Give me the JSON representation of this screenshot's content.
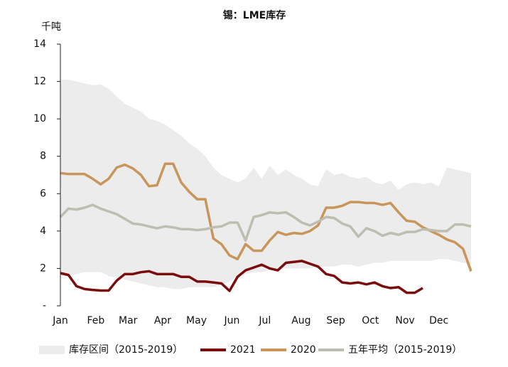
{
  "chart_data": {
    "type": "line",
    "title": "锡：LME库存",
    "y_label": "千吨",
    "x": [
      0,
      1,
      2,
      3,
      4,
      5,
      6,
      7,
      8,
      9,
      10,
      11,
      12,
      13,
      14,
      15,
      16,
      17,
      18,
      19,
      20,
      21,
      22,
      23,
      24,
      25,
      26,
      27,
      28,
      29,
      30,
      31,
      32,
      33,
      34,
      35,
      36,
      37,
      38,
      39,
      40,
      41,
      42,
      43,
      44,
      45,
      46,
      47,
      48,
      49,
      50,
      51
    ],
    "xlim": [
      0,
      51
    ],
    "xticks": [
      {
        "value": 0,
        "label": "Jan"
      },
      {
        "value": 4.4,
        "label": "Feb"
      },
      {
        "value": 8.4,
        "label": "Mar"
      },
      {
        "value": 12.7,
        "label": "Apr"
      },
      {
        "value": 16.9,
        "label": "May"
      },
      {
        "value": 21.3,
        "label": "Jun"
      },
      {
        "value": 25.4,
        "label": "Jul"
      },
      {
        "value": 29.9,
        "label": "Aug"
      },
      {
        "value": 34.2,
        "label": "Sep"
      },
      {
        "value": 38.5,
        "label": "Oct"
      },
      {
        "value": 42.8,
        "label": "Nov"
      },
      {
        "value": 47,
        "label": "Dec"
      }
    ],
    "ylim": [
      0,
      14
    ],
    "yticks": [
      {
        "value": 0,
        "label": "-"
      },
      2,
      4,
      6,
      8,
      10,
      12,
      14
    ],
    "legend": "bottom",
    "series": [
      {
        "name": "库存区间（2015-2019）",
        "kind": "band",
        "color": "#ececec",
        "upper": [
          12.1,
          12.1,
          12.0,
          11.9,
          11.8,
          11.85,
          11.6,
          11.2,
          10.8,
          10.6,
          10.4,
          10.0,
          9.9,
          9.7,
          9.4,
          9.1,
          8.7,
          8.4,
          8.0,
          7.4,
          7.0,
          6.8,
          6.6,
          6.8,
          7.4,
          6.8,
          7.5,
          7.0,
          7.3,
          7.0,
          6.8,
          6.5,
          6.4,
          7.3,
          7.0,
          7.1,
          6.9,
          6.8,
          6.9,
          6.6,
          6.5,
          6.7,
          6.2,
          6.5,
          6.6,
          6.5,
          6.6,
          6.4,
          7.4,
          7.3,
          7.2,
          7.1
        ],
        "lower": [
          1.6,
          1.6,
          1.7,
          1.8,
          1.8,
          1.8,
          1.6,
          1.5,
          1.4,
          1.3,
          1.2,
          1.1,
          1.0,
          1.0,
          0.9,
          0.9,
          1.0,
          1.0,
          1.0,
          1.0,
          1.1,
          1.3,
          1.6,
          1.7,
          1.8,
          1.8,
          1.9,
          2.0,
          2.0,
          2.0,
          2.0,
          2.0,
          2.1,
          2.1,
          2.1,
          2.2,
          2.2,
          2.1,
          2.2,
          2.3,
          2.3,
          2.4,
          2.4,
          2.4,
          2.4,
          2.4,
          2.4,
          2.5,
          2.5,
          2.4,
          2.3,
          2.2
        ]
      },
      {
        "name": "2021",
        "color": "#7b0c0c",
        "values": [
          1.75,
          1.65,
          1.05,
          0.9,
          0.85,
          0.82,
          0.82,
          1.35,
          1.7,
          1.7,
          1.8,
          1.85,
          1.7,
          1.7,
          1.7,
          1.55,
          1.55,
          1.3,
          1.3,
          1.25,
          1.2,
          0.8,
          1.55,
          1.9,
          2.05,
          2.2,
          2.0,
          1.9,
          2.3,
          2.35,
          2.4,
          2.25,
          2.1,
          1.7,
          1.6,
          1.25,
          1.2,
          1.25,
          1.15,
          1.25,
          1.05,
          0.95,
          1.0,
          0.7,
          0.7,
          0.95,
          null,
          null,
          null,
          null,
          null,
          null
        ]
      },
      {
        "name": "2020",
        "color": "#c8955a",
        "values": [
          7.1,
          7.05,
          7.05,
          7.05,
          6.8,
          6.5,
          6.8,
          7.4,
          7.55,
          7.35,
          7.0,
          6.4,
          6.45,
          7.6,
          7.6,
          6.6,
          6.1,
          5.7,
          5.7,
          3.6,
          3.3,
          2.7,
          2.5,
          3.3,
          2.95,
          2.95,
          3.5,
          3.95,
          3.8,
          3.9,
          3.85,
          4.0,
          4.3,
          5.25,
          5.25,
          5.35,
          5.55,
          5.55,
          5.5,
          5.5,
          5.4,
          5.5,
          5.0,
          4.55,
          4.5,
          4.2,
          4.0,
          3.8,
          3.55,
          3.4,
          3.05,
          1.85
        ]
      },
      {
        "name": "五年平均（2015-2019）",
        "color": "#bdbdb0",
        "values": [
          4.75,
          5.2,
          5.15,
          5.25,
          5.4,
          5.2,
          5.05,
          4.9,
          4.65,
          4.4,
          4.35,
          4.25,
          4.15,
          4.25,
          4.2,
          4.1,
          4.1,
          4.05,
          4.1,
          4.2,
          4.25,
          4.45,
          4.45,
          3.5,
          4.75,
          4.85,
          5.0,
          4.95,
          5.0,
          4.75,
          4.45,
          4.3,
          4.5,
          4.75,
          4.7,
          4.4,
          4.25,
          3.7,
          4.15,
          4.0,
          3.75,
          3.9,
          3.8,
          3.95,
          3.95,
          4.1,
          4.05,
          4.0,
          4.0,
          4.35,
          4.35,
          4.25
        ]
      }
    ]
  }
}
